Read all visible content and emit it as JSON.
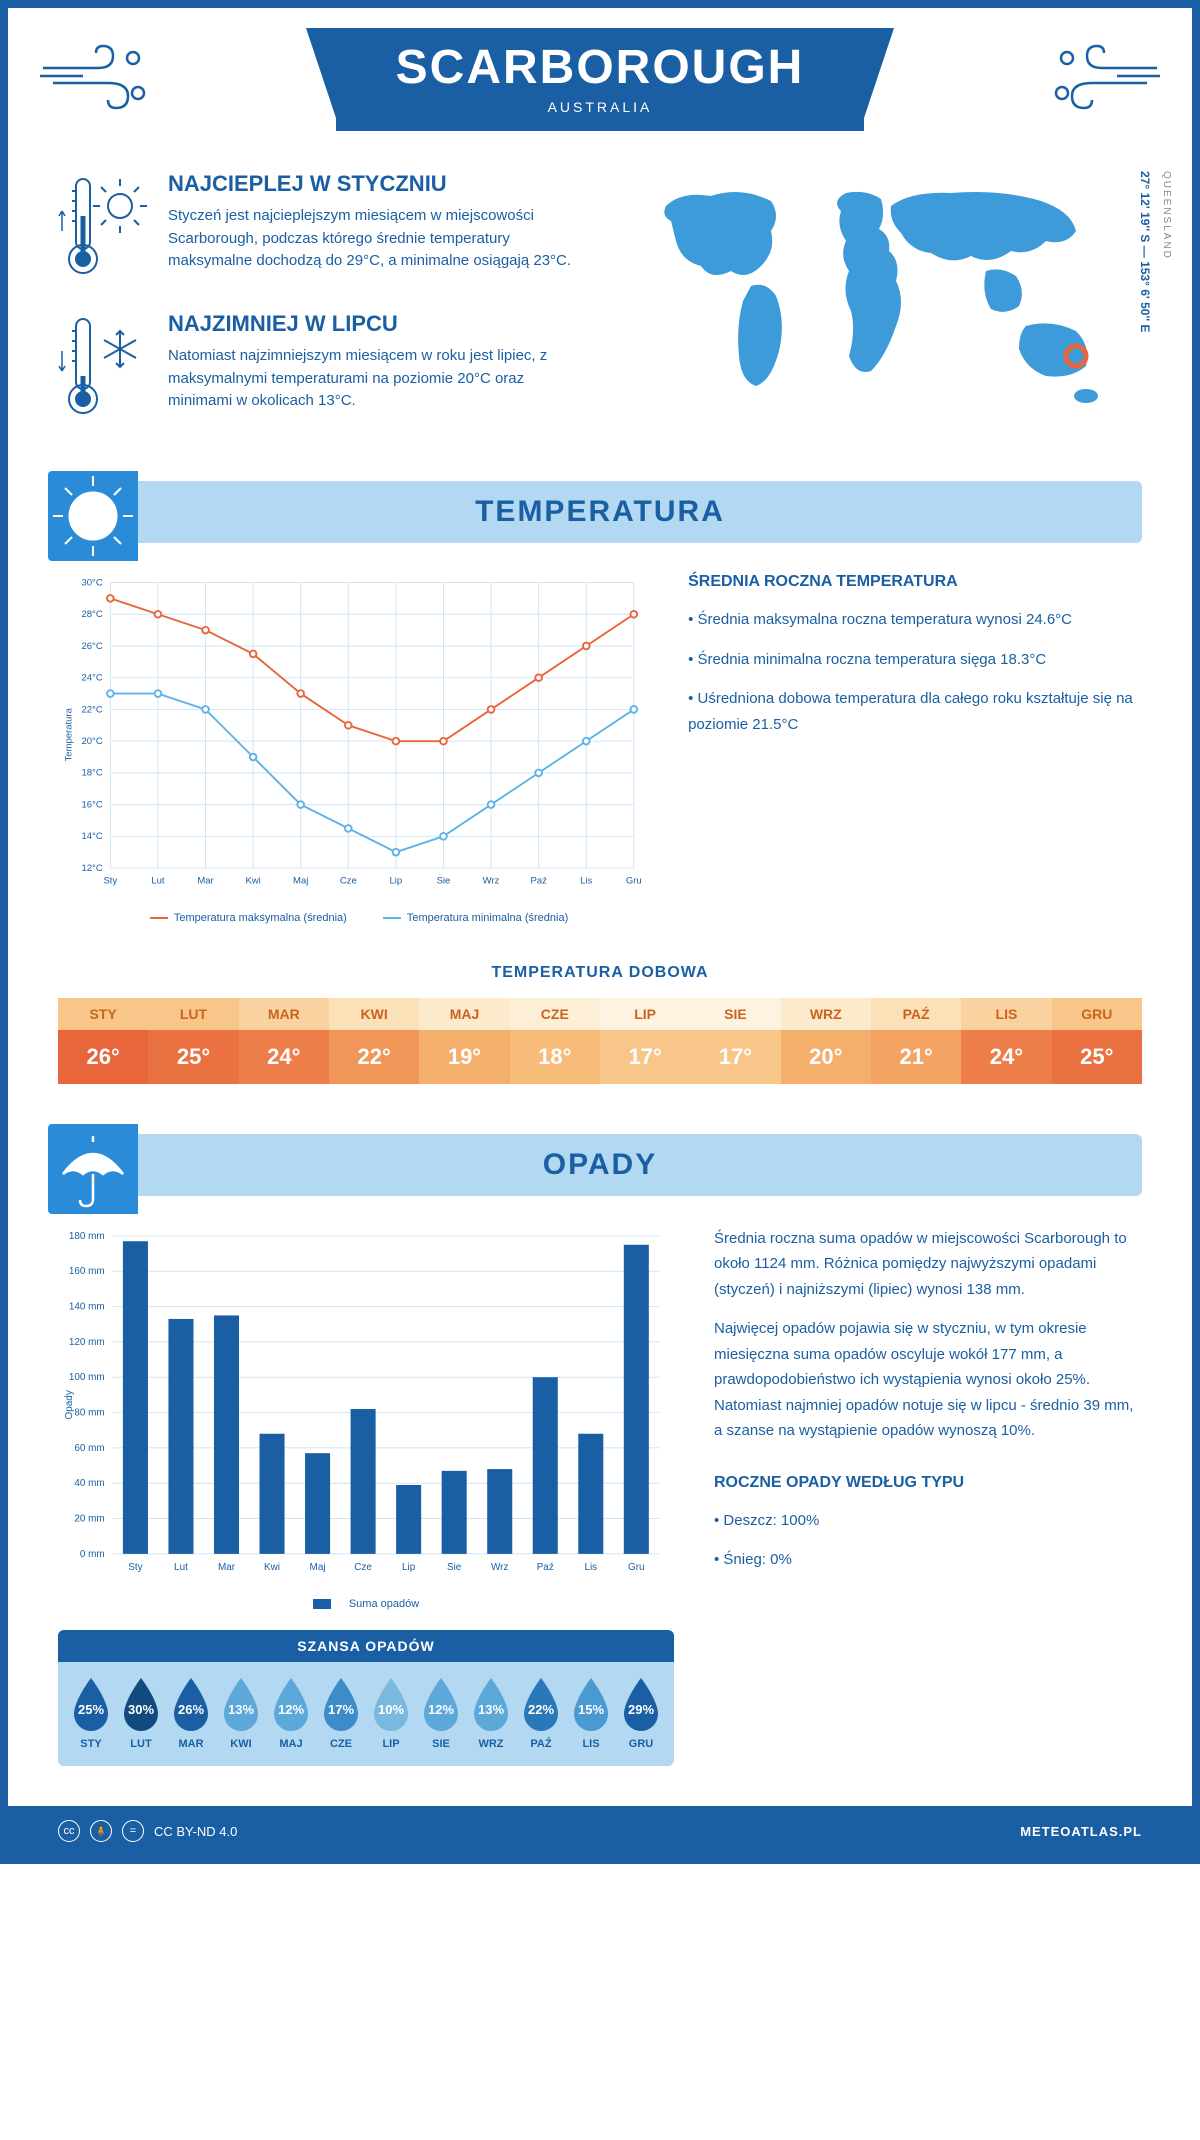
{
  "header": {
    "city": "SCARBOROUGH",
    "country": "AUSTRALIA",
    "coords": "27° 12' 19'' S — 153° 6' 50'' E",
    "region": "QUEENSLAND"
  },
  "facts": {
    "warm": {
      "title": "NAJCIEPLEJ W STYCZNIU",
      "text": "Styczeń jest najcieplejszym miesiącem w miejscowości Scarborough, podczas którego średnie temperatury maksymalne dochodzą do 29°C, a minimalne osiągają 23°C."
    },
    "cold": {
      "title": "NAJZIMNIEJ W LIPCU",
      "text": "Natomiast najzimniejszym miesiącem w roku jest lipiec, z maksymalnymi temperaturami na poziomie 20°C oraz minimami w okolicach 13°C."
    }
  },
  "temperature": {
    "section_title": "TEMPERATURA",
    "chart": {
      "type": "line",
      "months": [
        "Sty",
        "Lut",
        "Mar",
        "Kwi",
        "Maj",
        "Cze",
        "Lip",
        "Sie",
        "Wrz",
        "Paź",
        "Lis",
        "Gru"
      ],
      "y_label": "Temperatura",
      "y_min": 12,
      "y_max": 30,
      "y_step": 2,
      "series": [
        {
          "name": "Temperatura maksymalna (średnia)",
          "color": "#e8663c",
          "values": [
            29,
            28,
            27,
            25.5,
            23,
            21,
            20,
            20,
            22,
            24,
            26,
            28
          ]
        },
        {
          "name": "Temperatura minimalna (średnia)",
          "color": "#5cb3e8",
          "values": [
            23,
            23,
            22,
            19,
            16,
            14.5,
            13,
            14,
            16,
            18,
            20,
            22
          ]
        }
      ],
      "grid_color": "#d0e4f5",
      "background": "#ffffff",
      "marker": "circle",
      "line_width": 2
    },
    "annual": {
      "title": "ŚREDNIA ROCZNA TEMPERATURA",
      "bullets": [
        "Średnia maksymalna roczna temperatura wynosi 24.6°C",
        "Średnia minimalna roczna temperatura sięga 18.3°C",
        "Uśredniona dobowa temperatura dla całego roku kształtuje się na poziomie 21.5°C"
      ]
    },
    "daily": {
      "title": "TEMPERATURA DOBOWA",
      "months": [
        "STY",
        "LUT",
        "MAR",
        "KWI",
        "MAJ",
        "CZE",
        "LIP",
        "SIE",
        "WRZ",
        "PAŹ",
        "LIS",
        "GRU"
      ],
      "values": [
        "26°",
        "25°",
        "24°",
        "22°",
        "19°",
        "18°",
        "17°",
        "17°",
        "20°",
        "21°",
        "24°",
        "25°"
      ],
      "month_bg": [
        "#f9c68a",
        "#f9c68a",
        "#fad29f",
        "#fbe0b8",
        "#fde9cc",
        "#fdeed6",
        "#fef3e1",
        "#fef3e1",
        "#fde9cc",
        "#fbe0b8",
        "#fad29f",
        "#f9c68a"
      ],
      "value_bg": [
        "#e8663c",
        "#ea7142",
        "#ed7e4a",
        "#f19659",
        "#f5af6d",
        "#f7bb7a",
        "#f9c68a",
        "#f9c68a",
        "#f5af6d",
        "#f3a362",
        "#ed7e4a",
        "#ea7142"
      ]
    }
  },
  "precipitation": {
    "section_title": "OPADY",
    "chart": {
      "type": "bar",
      "months": [
        "Sty",
        "Lut",
        "Mar",
        "Kwi",
        "Maj",
        "Cze",
        "Lip",
        "Sie",
        "Wrz",
        "Paź",
        "Lis",
        "Gru"
      ],
      "y_label": "Opady",
      "y_min": 0,
      "y_max": 180,
      "y_step": 20,
      "bar_color": "#1a5fa3",
      "values": [
        177,
        133,
        135,
        68,
        57,
        82,
        39,
        47,
        48,
        100,
        68,
        175
      ],
      "legend": "Suma opadów",
      "grid_color": "#d0e4f5"
    },
    "text": {
      "p1": "Średnia roczna suma opadów w miejscowości Scarborough to około 1124 mm. Różnica pomiędzy najwyższymi opadami (styczeń) i najniższymi (lipiec) wynosi 138 mm.",
      "p2": "Najwięcej opadów pojawia się w styczniu, w tym okresie miesięczna suma opadów oscyluje wokół 177 mm, a prawdopodobieństwo ich wystąpienia wynosi około 25%. Natomiast najmniej opadów notuje się w lipcu - średnio 39 mm, a szanse na wystąpienie opadów wynoszą 10%."
    },
    "chance": {
      "title": "SZANSA OPADÓW",
      "months": [
        "STY",
        "LUT",
        "MAR",
        "KWI",
        "MAJ",
        "CZE",
        "LIP",
        "SIE",
        "WRZ",
        "PAŹ",
        "LIS",
        "GRU"
      ],
      "pct": [
        "25%",
        "30%",
        "26%",
        "13%",
        "12%",
        "17%",
        "10%",
        "12%",
        "13%",
        "22%",
        "15%",
        "29%"
      ],
      "colors": [
        "#1a5fa3",
        "#124a80",
        "#1a5fa3",
        "#5ca8d8",
        "#5ca8d8",
        "#3d8bc9",
        "#7bb8df",
        "#5ca8d8",
        "#5ca8d8",
        "#2a78b8",
        "#4a99d0",
        "#1a5fa3"
      ]
    },
    "by_type": {
      "title": "ROCZNE OPADY WEDŁUG TYPU",
      "items": [
        "Deszcz: 100%",
        "Śnieg: 0%"
      ]
    }
  },
  "footer": {
    "license": "CC BY-ND 4.0",
    "site": "METEOATLAS.PL"
  },
  "colors": {
    "primary": "#1a5fa3",
    "light_blue": "#b3d9f2",
    "accent_blue": "#2a8cd9",
    "map_fill": "#3d9bd9"
  }
}
